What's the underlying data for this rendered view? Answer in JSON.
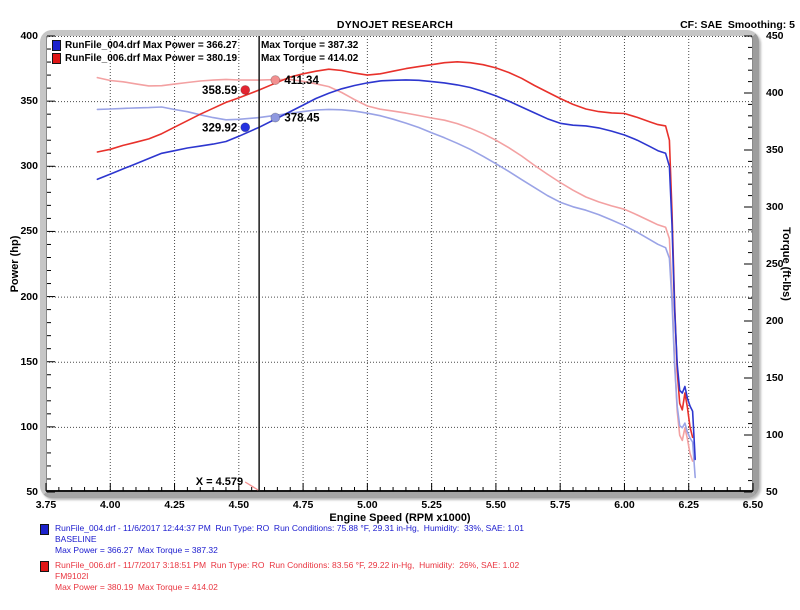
{
  "header": {
    "title": "DYNOJET RESEARCH",
    "correction": "CF: SAE  Smoothing: 5"
  },
  "legend": {
    "rows": [
      {
        "file_and_power": "RunFile_004.drf Max Power = 366.27",
        "torque": "Max Torque = 387.32",
        "swatch_color": "#1c22cc"
      },
      {
        "file_and_power": "RunFile_006.drf Max Power = 380.19",
        "torque": "Max Torque = 414.02",
        "swatch_color": "#e01616"
      }
    ]
  },
  "chart_data": {
    "type": "line",
    "title": "DYNOJET RESEARCH",
    "x_axis": {
      "label": "Engine Speed (RPM x1000)",
      "min": 3.75,
      "max": 6.5,
      "major_step": 0.25,
      "minor_step": 0.05,
      "tick_labels": [
        "3.75",
        "4.00",
        "4.25",
        "4.50",
        "4.75",
        "5.00",
        "5.25",
        "5.50",
        "5.75",
        "6.00",
        "6.25",
        "6.50"
      ]
    },
    "power_axis": {
      "label": "Power (hp)",
      "min": 50,
      "max": 400,
      "major_step": 50,
      "minor_step": 10,
      "tick_labels": [
        "400",
        "350",
        "300",
        "250",
        "200",
        "150",
        "100",
        "50"
      ]
    },
    "torque_axis": {
      "label": "Torque (ft-lbs)",
      "min": 50,
      "max": 450,
      "major_step": 50,
      "minor_step": 10,
      "tick_labels": [
        "450",
        "400",
        "350",
        "300",
        "250",
        "200",
        "150",
        "100",
        "50"
      ]
    },
    "grid": {
      "v_values": [
        4.0,
        4.25,
        4.5,
        4.75,
        5.0,
        5.25,
        5.5,
        5.75,
        6.0,
        6.25
      ],
      "h_power_values": [
        400,
        350,
        300,
        250,
        200,
        150,
        100
      ]
    },
    "cursor": {
      "rpm": 4.579,
      "label": "X = 4.579",
      "leader_color": "#f49090",
      "readouts": [
        {
          "series": "RunFile_006.drf",
          "axis": "power",
          "value": 358.59,
          "label": "358.59",
          "marker_rpm": 4.525,
          "side": "left",
          "color": "#e32430"
        },
        {
          "series": "RunFile_006.drf",
          "axis": "torque",
          "value": 411.34,
          "label": "411.34",
          "marker_rpm": 4.642,
          "side": "right",
          "color": "#f29090"
        },
        {
          "series": "RunFile_004.drf",
          "axis": "power",
          "value": 329.92,
          "label": "329.92",
          "marker_rpm": 4.525,
          "side": "left",
          "color": "#2633e0"
        },
        {
          "series": "RunFile_004.drf",
          "axis": "torque",
          "value": 378.45,
          "label": "378.45",
          "marker_rpm": 4.642,
          "side": "right",
          "color": "#8f99e0"
        }
      ]
    },
    "series": [
      {
        "name": "RunFile_004.drf",
        "max_power": 366.27,
        "max_torque": 387.32,
        "power_color": "#2d36cf",
        "torque_color": "#9aa3e6",
        "rpm": [
          3.95,
          4.0,
          4.05,
          4.1,
          4.15,
          4.2,
          4.25,
          4.3,
          4.35,
          4.4,
          4.45,
          4.5,
          4.579,
          4.65,
          4.7,
          4.75,
          4.8,
          4.85,
          4.9,
          4.95,
          5.0,
          5.05,
          5.1,
          5.15,
          5.2,
          5.25,
          5.3,
          5.35,
          5.4,
          5.45,
          5.5,
          5.55,
          5.6,
          5.65,
          5.7,
          5.75,
          5.8,
          5.85,
          5.9,
          5.95,
          6.0,
          6.05,
          6.1,
          6.13,
          6.16,
          6.175,
          6.185,
          6.195,
          6.205,
          6.215,
          6.225,
          6.235,
          6.245,
          6.255,
          6.265,
          6.275
        ],
        "power": [
          290,
          294,
          298,
          302,
          306,
          310,
          312,
          314,
          315.5,
          317,
          319,
          323,
          329.92,
          337,
          342,
          347,
          352,
          356,
          359.5,
          362,
          364,
          365.5,
          366,
          366.27,
          366,
          365,
          364,
          362.5,
          360.5,
          357.5,
          354,
          350,
          345.5,
          341,
          336.5,
          333,
          331.5,
          331,
          329.5,
          327,
          324,
          320,
          315,
          312,
          310,
          300,
          255,
          190,
          148,
          128,
          126,
          131,
          122,
          116,
          112,
          75
        ],
        "torque": [
          385.6,
          386.0,
          386.5,
          386.9,
          387.2,
          387.7,
          385.5,
          383.6,
          380.9,
          378.4,
          376.5,
          376.9,
          378.4,
          380.6,
          382.2,
          383.7,
          385.1,
          385.6,
          385.3,
          384.1,
          382.3,
          380.1,
          377.0,
          373.6,
          369.7,
          365.2,
          360.7,
          355.9,
          350.6,
          344.5,
          338.0,
          331.2,
          324.0,
          317.0,
          310.1,
          304.2,
          300.2,
          297.2,
          293.3,
          288.6,
          283.6,
          277.8,
          271.2,
          267.3,
          264.3,
          255.1,
          216.6,
          161.1,
          125.3,
          108.2,
          106.3,
          110.4,
          102.6,
          97.4,
          93.9,
          62.8
        ]
      },
      {
        "name": "RunFile_006.drf",
        "max_power": 380.19,
        "max_torque": 414.02,
        "power_color": "#e8312b",
        "torque_color": "#f3a1a2",
        "rpm": [
          3.95,
          4.0,
          4.05,
          4.1,
          4.15,
          4.2,
          4.25,
          4.3,
          4.35,
          4.4,
          4.45,
          4.5,
          4.579,
          4.65,
          4.7,
          4.75,
          4.8,
          4.85,
          4.9,
          4.95,
          5.0,
          5.05,
          5.1,
          5.15,
          5.2,
          5.25,
          5.3,
          5.35,
          5.4,
          5.45,
          5.5,
          5.55,
          5.6,
          5.65,
          5.7,
          5.75,
          5.8,
          5.85,
          5.9,
          5.95,
          6.0,
          6.05,
          6.1,
          6.13,
          6.16,
          6.175,
          6.185,
          6.195,
          6.205,
          6.215,
          6.225,
          6.235,
          6.245,
          6.255,
          6.265
        ],
        "power": [
          311,
          313,
          316,
          318.5,
          321,
          325,
          330,
          335,
          340,
          344.5,
          349,
          352.5,
          358.59,
          364.5,
          368.5,
          371,
          373,
          374.5,
          373.5,
          371.5,
          370,
          371,
          373,
          375,
          376.5,
          378,
          379.5,
          380.19,
          379.5,
          378,
          375.5,
          372,
          367.5,
          362,
          357,
          352,
          347.5,
          344,
          342,
          341,
          340.5,
          337.5,
          334,
          332,
          331,
          320,
          265,
          195,
          143,
          118,
          113,
          126,
          115,
          100,
          92
        ],
        "torque": [
          413.5,
          411.0,
          409.8,
          408.0,
          406.2,
          406.4,
          407.8,
          409.2,
          410.5,
          411.3,
          411.9,
          411.4,
          411.3,
          411.8,
          411.8,
          410.3,
          408.1,
          405.6,
          400.4,
          394.2,
          388.6,
          385.8,
          384.1,
          382.4,
          380.3,
          378.1,
          376.1,
          373.2,
          369.1,
          364.3,
          358.6,
          352.0,
          344.7,
          336.5,
          328.9,
          321.5,
          314.7,
          308.8,
          304.5,
          301.0,
          298.0,
          293.0,
          287.6,
          284.4,
          282.2,
          272.1,
          225.1,
          165.3,
          121.0,
          99.7,
          95.3,
          106.2,
          96.7,
          83.9,
          77.1
        ]
      }
    ]
  },
  "footer": {
    "runs": [
      {
        "swatch_color": "#1c22cc",
        "text_color": "#1a1ace",
        "line1": "RunFile_004.drf - 11/6/2017 12:44:37 PM  Run Type: RO  Run Conditions: 75.88 °F, 29.31 in-Hg,  Humidity:  33%, SAE: 1.01",
        "line2": "BASELINE",
        "line3": "Max Power = 366.27  Max Torque = 387.32"
      },
      {
        "swatch_color": "#e01616",
        "text_color": "#e93540",
        "line1": "RunFile_006.drf - 11/7/2017 3:18:51 PM  Run Type: RO  Run Conditions: 83.56 °F, 29.22 in-Hg,  Humidity:  26%, SAE: 1.02",
        "line2": "FM9102I",
        "line3": "Max Power = 380.19  Max Torque = 414.02"
      }
    ]
  }
}
